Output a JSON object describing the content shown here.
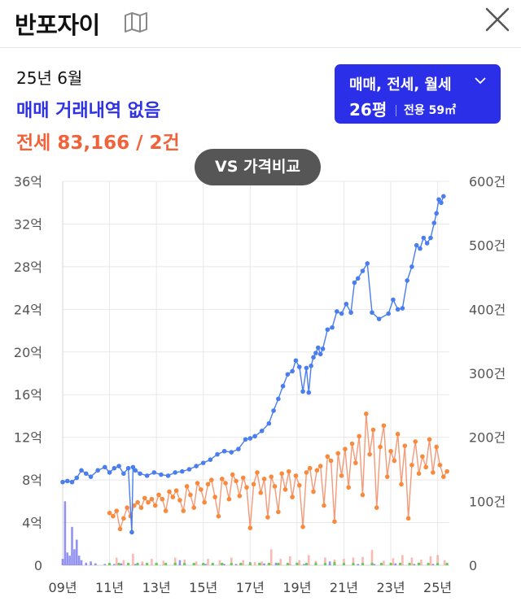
{
  "header": {
    "title": "반포자이"
  },
  "summary": {
    "date": "25년 6월",
    "sale_status": "매매 거래내역 없음",
    "rent_summary": "전세 83,166 / 2건"
  },
  "filter": {
    "types": "매매, 전세, 월세",
    "size": "26평",
    "area": "전용 59㎡"
  },
  "compare_button": "VS 가격비교",
  "colors": {
    "sale": "#2e32e0",
    "rent": "#f0633a",
    "price_line": "#4a7df0",
    "rent_line": "#f39a78",
    "rent_point": "#f98a3c",
    "volume_sale": "#6f6ff0",
    "volume_rent": "#f6a9a0",
    "volume_monthly": "#66cc55",
    "grid": "#e8e8e8"
  },
  "chart_data": {
    "type": "line",
    "x_unit": "year",
    "xlim": [
      2009,
      2025.5
    ],
    "x_ticks": [
      "09년",
      "11년",
      "13년",
      "15년",
      "17년",
      "19년",
      "21년",
      "23년",
      "25년"
    ],
    "x_tick_values": [
      2009,
      2011,
      2013,
      2015,
      2017,
      2019,
      2021,
      2023,
      2025
    ],
    "y_left": {
      "ticks": [
        "0",
        "4억",
        "8억",
        "12억",
        "16억",
        "20억",
        "24억",
        "28억",
        "32억",
        "36억"
      ],
      "ylim": [
        0,
        36
      ]
    },
    "y_right": {
      "ticks": [
        "0",
        "100건",
        "200건",
        "300건",
        "400건",
        "500건",
        "600건"
      ],
      "ylim": [
        0,
        600
      ]
    },
    "grid": true,
    "series": [
      {
        "key": "sale_price",
        "type": "line",
        "axis": "left",
        "x": [
          2009.0,
          2009.2,
          2009.4,
          2009.6,
          2009.8,
          2010.0,
          2010.2,
          2010.5,
          2010.8,
          2011.0,
          2011.2,
          2011.4,
          2011.6,
          2011.8,
          2011.95,
          2012.0,
          2012.1,
          2012.3,
          2012.6,
          2012.9,
          2013.2,
          2013.5,
          2013.8,
          2014.1,
          2014.4,
          2014.7,
          2015.0,
          2015.3,
          2015.6,
          2015.9,
          2016.2,
          2016.5,
          2016.8,
          2017.0,
          2017.2,
          2017.5,
          2017.8,
          2018.0,
          2018.2,
          2018.4,
          2018.6,
          2018.8,
          2018.95,
          2019.1,
          2019.25,
          2019.4,
          2019.5,
          2019.6,
          2019.7,
          2019.8,
          2019.9,
          2020.0,
          2020.1,
          2020.3,
          2020.5,
          2020.7,
          2020.9,
          2021.1,
          2021.3,
          2021.45,
          2021.6,
          2021.8,
          2022.0,
          2022.2,
          2022.5,
          2022.9,
          2023.1,
          2023.3,
          2023.5,
          2023.7,
          2023.9,
          2024.1,
          2024.25,
          2024.4,
          2024.55,
          2024.7,
          2024.85,
          2024.95,
          2025.05,
          2025.15,
          2025.25
        ],
        "values": [
          7.8,
          7.9,
          7.8,
          8.2,
          8.9,
          8.6,
          8.3,
          8.9,
          9.2,
          8.7,
          9.1,
          9.3,
          8.6,
          9.1,
          3.1,
          9.2,
          8.9,
          8.6,
          8.4,
          8.7,
          8.5,
          8.4,
          8.7,
          8.8,
          9.0,
          9.3,
          9.6,
          9.9,
          10.4,
          10.7,
          10.6,
          10.9,
          11.8,
          11.9,
          12.1,
          12.6,
          13.3,
          14.5,
          15.6,
          16.8,
          17.9,
          18.2,
          19.2,
          18.6,
          16.3,
          18.5,
          16.2,
          18.7,
          19.5,
          19.9,
          20.4,
          19.8,
          20.3,
          22.1,
          22.3,
          23.8,
          23.6,
          24.5,
          23.7,
          26.5,
          26.9,
          27.6,
          28.3,
          23.7,
          23.1,
          23.6,
          24.9,
          24.0,
          24.1,
          26.7,
          28.0,
          30.0,
          29.7,
          30.7,
          30.2,
          30.7,
          32.1,
          33.0,
          34.3,
          34.0,
          34.6
        ]
      },
      {
        "key": "rent_price",
        "type": "line",
        "axis": "left",
        "x": [
          2011.0,
          2011.15,
          2011.3,
          2011.45,
          2011.6,
          2011.75,
          2011.9,
          2012.05,
          2012.2,
          2012.35,
          2012.5,
          2012.65,
          2012.8,
          2012.95,
          2013.1,
          2013.25,
          2013.4,
          2013.55,
          2013.7,
          2013.85,
          2014.0,
          2014.15,
          2014.3,
          2014.45,
          2014.6,
          2014.75,
          2014.9,
          2015.05,
          2015.2,
          2015.35,
          2015.5,
          2015.65,
          2015.8,
          2015.95,
          2016.1,
          2016.25,
          2016.4,
          2016.55,
          2016.7,
          2016.85,
          2017.0,
          2017.15,
          2017.3,
          2017.45,
          2017.6,
          2017.75,
          2017.9,
          2018.05,
          2018.2,
          2018.35,
          2018.5,
          2018.65,
          2018.8,
          2018.95,
          2019.1,
          2019.25,
          2019.4,
          2019.55,
          2019.7,
          2019.85,
          2020.0,
          2020.15,
          2020.3,
          2020.45,
          2020.6,
          2020.75,
          2020.9,
          2021.05,
          2021.2,
          2021.35,
          2021.5,
          2021.65,
          2021.8,
          2021.95,
          2022.1,
          2022.25,
          2022.4,
          2022.55,
          2022.7,
          2022.85,
          2023.0,
          2023.15,
          2023.3,
          2023.45,
          2023.6,
          2023.75,
          2023.9,
          2024.05,
          2024.2,
          2024.35,
          2024.5,
          2024.65,
          2024.8,
          2024.95,
          2025.1,
          2025.25,
          2025.4
        ],
        "values": [
          4.9,
          4.6,
          5.1,
          3.4,
          4.4,
          5.4,
          4.6,
          5.6,
          5.9,
          5.4,
          6.3,
          5.9,
          6.2,
          5.6,
          6.6,
          6.2,
          5.1,
          6.9,
          6.4,
          7.0,
          6.1,
          5.1,
          7.4,
          6.6,
          5.4,
          7.7,
          7.1,
          5.9,
          7.6,
          8.0,
          6.4,
          4.6,
          8.1,
          7.7,
          6.2,
          8.5,
          7.9,
          6.5,
          8.2,
          7.3,
          3.5,
          7.6,
          8.7,
          6.8,
          8.1,
          4.5,
          8.3,
          7.4,
          5.0,
          8.6,
          7.1,
          8.8,
          6.4,
          8.4,
          7.5,
          3.6,
          8.7,
          9.1,
          6.9,
          8.9,
          9.3,
          5.6,
          10.2,
          9.8,
          4.1,
          10.5,
          8.4,
          10.9,
          7.3,
          11.4,
          9.6,
          12.1,
          6.6,
          14.2,
          10.4,
          12.7,
          5.4,
          11.1,
          13.1,
          8.3,
          10.7,
          9.8,
          12.3,
          7.6,
          11.2,
          4.4,
          9.4,
          11.6,
          8.6,
          10.2,
          9.2,
          11.8,
          8.7,
          11.1,
          9.4,
          8.3,
          8.8
        ]
      },
      {
        "key": "sale_volume",
        "type": "bar",
        "axis": "right",
        "x": [
          2009.0,
          2009.1,
          2009.2,
          2009.3,
          2009.4,
          2009.5,
          2009.6,
          2009.7,
          2009.8,
          2010.0,
          2010.2,
          2010.4,
          2010.8,
          2011.2,
          2011.5,
          2012.1,
          2012.4,
          2013.0,
          2013.4,
          2014.0,
          2014.6,
          2015.1,
          2015.9,
          2016.4,
          2017.0,
          2017.6,
          2018.1,
          2018.7,
          2019.3,
          2019.8,
          2020.4,
          2021.0,
          2021.6,
          2022.3,
          2023.2,
          2024.0,
          2024.8
        ],
        "values": [
          10,
          100,
          20,
          15,
          60,
          25,
          40,
          15,
          8,
          4,
          6,
          3,
          2,
          2,
          3,
          2,
          3,
          4,
          2,
          8,
          3,
          2,
          2,
          2,
          5,
          3,
          4,
          2,
          2,
          5,
          6,
          3,
          2,
          2,
          3,
          2,
          2
        ]
      },
      {
        "key": "rent_volume",
        "type": "bar",
        "axis": "right",
        "x": [
          2011.3,
          2011.6,
          2012.0,
          2012.4,
          2012.8,
          2013.3,
          2013.8,
          2014.2,
          2014.7,
          2015.2,
          2015.7,
          2016.2,
          2016.7,
          2017.2,
          2017.5,
          2017.9,
          2018.3,
          2018.7,
          2019.1,
          2019.5,
          2019.8,
          2020.2,
          2020.6,
          2021.0,
          2021.4,
          2021.8,
          2022.2,
          2022.7,
          2023.1,
          2023.5,
          2023.9,
          2024.3,
          2024.7,
          2025.0,
          2025.3
        ],
        "values": [
          12,
          8,
          18,
          6,
          10,
          7,
          12,
          9,
          6,
          10,
          8,
          12,
          8,
          5,
          6,
          25,
          10,
          14,
          8,
          16,
          7,
          12,
          9,
          10,
          12,
          13,
          24,
          7,
          11,
          16,
          12,
          9,
          14,
          16,
          8
        ]
      },
      {
        "key": "monthly_volume",
        "type": "bar",
        "axis": "right",
        "x": [
          2011.0,
          2011.4,
          2011.8,
          2012.2,
          2012.6,
          2013.0,
          2013.4,
          2013.8,
          2014.2,
          2014.6,
          2015.0,
          2015.4,
          2015.8,
          2016.2,
          2016.6,
          2017.0,
          2017.4,
          2017.8,
          2018.2,
          2018.6,
          2019.0,
          2019.4,
          2019.8,
          2020.2,
          2020.6,
          2021.0,
          2021.4,
          2021.8,
          2022.2,
          2022.6,
          2023.0,
          2023.4,
          2023.8,
          2024.2,
          2024.6,
          2025.0,
          2025.4
        ],
        "values": [
          1,
          2,
          2,
          2,
          3,
          3,
          2,
          4,
          3,
          2,
          3,
          2,
          4,
          3,
          3,
          2,
          4,
          3,
          2,
          3,
          4,
          3,
          2,
          3,
          5,
          3,
          3,
          2,
          4,
          3,
          3,
          2,
          3,
          4,
          3,
          2,
          3
        ]
      }
    ]
  }
}
